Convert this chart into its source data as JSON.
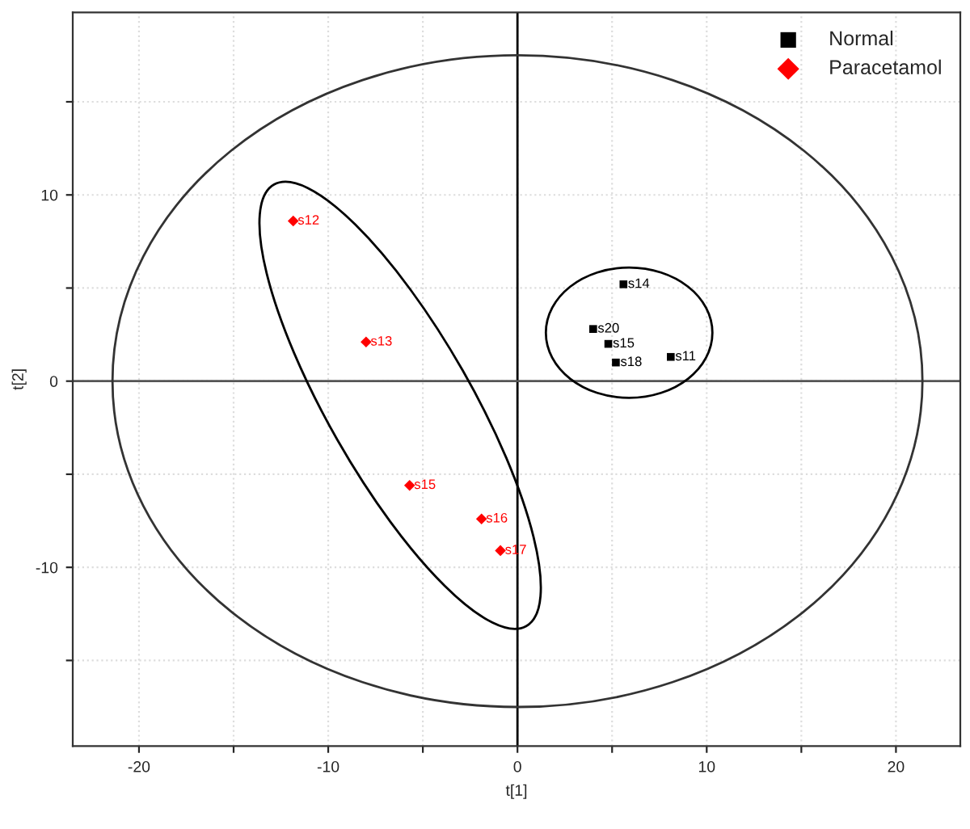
{
  "chart_data": {
    "type": "scatter",
    "xlabel": "t[1]",
    "ylabel": "t[2]",
    "xlim": [
      -23.5,
      23.4
    ],
    "ylim": [
      -19.6,
      19.8
    ],
    "xticks": [
      -20,
      {
        "value": -15,
        "label": null
      },
      -10,
      {
        "value": -5,
        "label": null
      },
      0,
      {
        "value": 5,
        "label": null
      },
      10,
      {
        "value": 15,
        "label": null
      },
      20
    ],
    "yticks": [
      {
        "value": -15,
        "label": null
      },
      -10,
      {
        "value": -5,
        "label": null
      },
      0,
      {
        "value": 5,
        "label": null
      },
      10,
      {
        "value": 15,
        "label": null
      }
    ],
    "grid": true,
    "legend": "top right",
    "ref_lines": [
      {
        "axis": "x",
        "value": 0,
        "color": "#000000"
      },
      {
        "axis": "y",
        "value": 0,
        "color": "#555555"
      }
    ],
    "series": [
      {
        "name": "Normal",
        "marker": "square",
        "color": "#000000",
        "x": [
          5.6,
          4.0,
          4.8,
          5.2,
          8.1
        ],
        "values": [
          5.2,
          2.8,
          2.0,
          1.0,
          1.3
        ],
        "value_labels": [
          "s14",
          "s20",
          "s15",
          "s18",
          "s11"
        ]
      },
      {
        "name": "Paracetamol",
        "marker": "diamond",
        "color": "#ff0000",
        "x": [
          -11.85,
          -8.0,
          -5.7,
          -1.9,
          -0.9
        ],
        "values": [
          8.6,
          2.1,
          -5.6,
          -7.4,
          -9.1
        ],
        "value_labels": [
          "s12",
          "s13",
          "s15",
          "s16",
          "s17"
        ]
      }
    ]
  }
}
